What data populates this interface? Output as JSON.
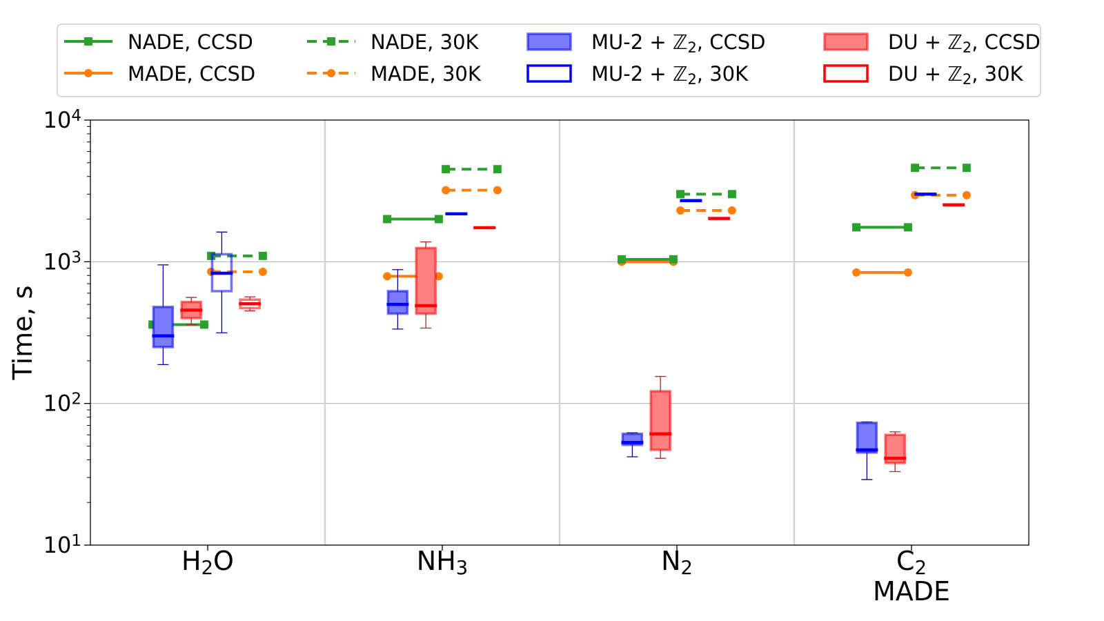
{
  "chart_data": {
    "type": "box",
    "ylabel": "Time, s",
    "yscale": "log",
    "ylim": [
      10,
      10000
    ],
    "y_ticks": [
      {
        "base": "10",
        "exp": "1"
      },
      {
        "base": "10",
        "exp": "2"
      },
      {
        "base": "10",
        "exp": "3"
      },
      {
        "base": "10",
        "exp": "4"
      }
    ],
    "grid": "horizontal at 10^2 and 10^3; vertical separators between groups",
    "legend_placement": "top, 4 columns",
    "legend": [
      {
        "pre": "NADE, CCSD",
        "sub": "",
        "post": "",
        "style": "line-square",
        "color": "#2ca02c",
        "dash": false
      },
      {
        "pre": "MADE, CCSD",
        "sub": "",
        "post": "",
        "style": "line-circle",
        "color": "#ff7f0e",
        "dash": false
      },
      {
        "pre": "NADE, 30K",
        "sub": "",
        "post": "",
        "style": "line-square",
        "color": "#2ca02c",
        "dash": true
      },
      {
        "pre": "MADE, 30K",
        "sub": "",
        "post": "",
        "style": "line-circle",
        "color": "#ff7f0e",
        "dash": true
      },
      {
        "pre": "MU-2 + ℤ",
        "sub": "2",
        "post": ", CCSD",
        "style": "box-filled",
        "color": "#0000ff"
      },
      {
        "pre": "MU-2 + ℤ",
        "sub": "2",
        "post": ", 30K",
        "style": "box-open",
        "color": "#0000ff"
      },
      {
        "pre": "DU + ℤ",
        "sub": "2",
        "post": ", CCSD",
        "style": "box-filled",
        "color": "#ff0000"
      },
      {
        "pre": "DU + ℤ",
        "sub": "2",
        "post": ", 30K",
        "style": "box-open",
        "color": "#ff0000"
      }
    ],
    "categories": [
      {
        "pre": "H",
        "sub": "2",
        "post": "O",
        "extra": ""
      },
      {
        "pre": "NH",
        "sub": "3",
        "post": "",
        "extra": ""
      },
      {
        "pre": "N",
        "sub": "2",
        "post": "",
        "extra": ""
      },
      {
        "pre": "C",
        "sub": "2",
        "post": "",
        "extra": "MADE"
      }
    ],
    "series": {
      "NADE, CCSD": [
        360,
        2000,
        1040,
        1750
      ],
      "MADE, CCSD": [
        360,
        790,
        1000,
        840
      ],
      "NADE, 30K": [
        1100,
        4500,
        3000,
        4600
      ],
      "MADE, 30K": [
        850,
        3200,
        2300,
        2950
      ]
    },
    "boxes": {
      "MU-2 + Z2, CCSD": [
        {
          "whislo": 188,
          "q1": 250,
          "med": 300,
          "q3": 480,
          "whishi": 950
        },
        {
          "whislo": 335,
          "q1": 430,
          "med": 500,
          "q3": 620,
          "whishi": 880
        },
        {
          "whislo": 42,
          "q1": 51,
          "med": 53,
          "q3": 61,
          "whishi": 62
        },
        {
          "whislo": 29,
          "q1": 45,
          "med": 47,
          "q3": 73,
          "whishi": 74
        }
      ],
      "MU-2 + Z2, 30K": [
        {
          "whislo": 315,
          "q1": 620,
          "med": 830,
          "q3": 1130,
          "whishi": 1620
        },
        {
          "whislo": 2180,
          "q1": 2180,
          "med": 2180,
          "q3": 2180,
          "whishi": 2180
        },
        {
          "whislo": 2700,
          "q1": 2700,
          "med": 2700,
          "q3": 2700,
          "whishi": 2700
        },
        {
          "whislo": 3000,
          "q1": 3000,
          "med": 3000,
          "q3": 3000,
          "whishi": 3000
        }
      ],
      "DU + Z2, CCSD": [
        {
          "whislo": 360,
          "q1": 400,
          "med": 455,
          "q3": 520,
          "whishi": 560
        },
        {
          "whislo": 340,
          "q1": 430,
          "med": 490,
          "q3": 1250,
          "whishi": 1380
        },
        {
          "whislo": 41,
          "q1": 47,
          "med": 61,
          "q3": 122,
          "whishi": 155
        },
        {
          "whislo": 33,
          "q1": 38,
          "med": 41,
          "q3": 60,
          "whishi": 63
        }
      ],
      "DU + Z2, 30K": [
        {
          "whislo": 450,
          "q1": 470,
          "med": 505,
          "q3": 540,
          "whishi": 565
        },
        {
          "whislo": 1740,
          "q1": 1740,
          "med": 1740,
          "q3": 1740,
          "whishi": 1740
        },
        {
          "whislo": 2020,
          "q1": 2020,
          "med": 2020,
          "q3": 2020,
          "whishi": 2020
        },
        {
          "whislo": 2520,
          "q1": 2520,
          "med": 2520,
          "q3": 2520,
          "whishi": 2520
        }
      ]
    },
    "colors": {
      "green": "#2ca02c",
      "orange": "#ff7f0e",
      "blue": "#0000ff",
      "red": "#ff0000",
      "blue_fill": "#7b7bff",
      "red_fill": "#ff8080"
    }
  }
}
